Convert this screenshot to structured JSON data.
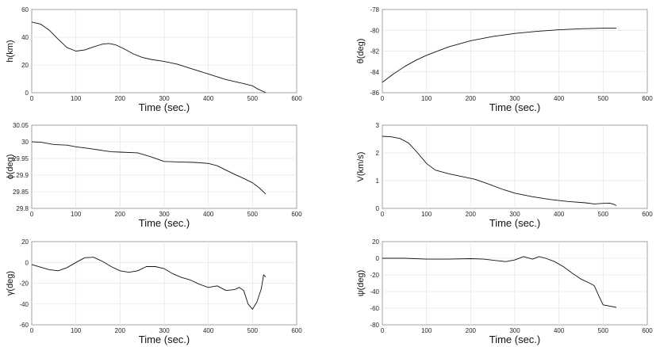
{
  "chart_data": [
    {
      "type": "line",
      "title": "",
      "xlabel": "Time (sec.)",
      "ylabel": "h(km)",
      "xlim": [
        0,
        600
      ],
      "ylim": [
        0,
        60
      ],
      "xticks": [
        0,
        100,
        200,
        300,
        400,
        500,
        600
      ],
      "yticks": [
        0,
        20,
        40,
        60
      ],
      "ytick_labels": [
        "0",
        "20",
        "40",
        "60"
      ],
      "grid": true,
      "series": [
        {
          "name": "h",
          "x": [
            0,
            20,
            40,
            60,
            80,
            100,
            120,
            140,
            160,
            175,
            190,
            210,
            230,
            250,
            270,
            300,
            330,
            360,
            400,
            440,
            480,
            500,
            510,
            530
          ],
          "values": [
            51,
            49.5,
            45,
            38.5,
            32.5,
            30,
            30.8,
            33,
            35,
            35.5,
            34.5,
            31.5,
            28,
            25.5,
            24,
            22.5,
            20.5,
            17.5,
            13.5,
            9.5,
            6.5,
            5,
            3,
            0
          ]
        }
      ]
    },
    {
      "type": "line",
      "title": "",
      "xlabel": "Time (sec.)",
      "ylabel": "θ(deg)",
      "xlim": [
        0,
        600
      ],
      "ylim": [
        -86,
        -78
      ],
      "xticks": [
        0,
        100,
        200,
        300,
        400,
        500,
        600
      ],
      "yticks": [
        -86,
        -84,
        -82,
        -80,
        -78
      ],
      "ytick_labels": [
        "-86",
        "-84",
        "-82",
        "-80",
        "-78"
      ],
      "grid": true,
      "series": [
        {
          "name": "theta",
          "x": [
            0,
            25,
            50,
            75,
            100,
            150,
            200,
            250,
            300,
            350,
            400,
            450,
            500,
            530
          ],
          "values": [
            -85,
            -84.2,
            -83.5,
            -82.9,
            -82.4,
            -81.6,
            -81,
            -80.6,
            -80.3,
            -80.1,
            -79.95,
            -79.85,
            -79.8,
            -79.8
          ]
        }
      ]
    },
    {
      "type": "line",
      "title": "",
      "xlabel": "Time (sec.)",
      "ylabel": "ϕ(deg)",
      "xlim": [
        0,
        600
      ],
      "ylim": [
        29.8,
        30.05
      ],
      "xticks": [
        0,
        100,
        200,
        300,
        400,
        500,
        600
      ],
      "yticks": [
        29.8,
        29.85,
        29.9,
        29.95,
        30,
        30.05
      ],
      "ytick_labels": [
        "29.8",
        "29.85",
        "29.9",
        "29.95",
        "30",
        "30.05"
      ],
      "grid": true,
      "series": [
        {
          "name": "phi",
          "x": [
            0,
            20,
            50,
            80,
            100,
            130,
            160,
            180,
            200,
            240,
            270,
            300,
            320,
            340,
            370,
            400,
            420,
            440,
            460,
            480,
            500,
            515,
            530
          ],
          "values": [
            30,
            29.999,
            29.992,
            29.99,
            29.985,
            29.98,
            29.974,
            29.97,
            29.969,
            29.967,
            29.955,
            29.941,
            29.94,
            29.939,
            29.938,
            29.935,
            29.928,
            29.915,
            29.902,
            29.89,
            29.877,
            29.862,
            29.843
          ]
        }
      ]
    },
    {
      "type": "line",
      "title": "",
      "xlabel": "Time (sec.)",
      "ylabel": "V(km/s)",
      "xlim": [
        0,
        600
      ],
      "ylim": [
        0,
        3
      ],
      "xticks": [
        0,
        100,
        200,
        300,
        400,
        500,
        600
      ],
      "yticks": [
        0,
        1,
        2,
        3
      ],
      "ytick_labels": [
        "0",
        "1",
        "2",
        "3"
      ],
      "grid": true,
      "series": [
        {
          "name": "V",
          "x": [
            0,
            20,
            40,
            60,
            80,
            100,
            120,
            150,
            180,
            210,
            240,
            270,
            300,
            340,
            380,
            420,
            460,
            480,
            500,
            515,
            525,
            530
          ],
          "values": [
            2.6,
            2.58,
            2.52,
            2.35,
            2.0,
            1.62,
            1.38,
            1.25,
            1.15,
            1.05,
            0.88,
            0.7,
            0.55,
            0.42,
            0.32,
            0.25,
            0.2,
            0.16,
            0.18,
            0.19,
            0.14,
            0.1
          ]
        }
      ]
    },
    {
      "type": "line",
      "title": "",
      "xlabel": "Time (sec.)",
      "ylabel": "γ(deg)",
      "xlim": [
        0,
        600
      ],
      "ylim": [
        -60,
        20
      ],
      "xticks": [
        0,
        100,
        200,
        300,
        400,
        500,
        600
      ],
      "yticks": [
        -60,
        -40,
        -20,
        0,
        20
      ],
      "ytick_labels": [
        "-60",
        "-40",
        "-20",
        "0",
        "20"
      ],
      "grid": true,
      "series": [
        {
          "name": "gamma",
          "x": [
            0,
            20,
            40,
            60,
            80,
            100,
            120,
            140,
            160,
            180,
            200,
            220,
            240,
            260,
            280,
            300,
            320,
            340,
            360,
            380,
            400,
            420,
            440,
            460,
            470,
            480,
            490,
            500,
            510,
            520,
            525,
            530
          ],
          "values": [
            -2,
            -4.5,
            -7,
            -8,
            -5,
            0,
            4.5,
            5,
            1,
            -4,
            -8,
            -9.5,
            -8,
            -4,
            -4,
            -6,
            -11,
            -14.5,
            -17,
            -21,
            -24,
            -22.5,
            -27,
            -26,
            -24,
            -27,
            -40,
            -45,
            -38,
            -25,
            -12,
            -14
          ]
        }
      ]
    },
    {
      "type": "line",
      "title": "",
      "xlabel": "Time (sec.)",
      "ylabel": "ψ(deg)",
      "xlim": [
        0,
        600
      ],
      "ylim": [
        -80,
        20
      ],
      "xticks": [
        0,
        100,
        200,
        300,
        400,
        500,
        600
      ],
      "yticks": [
        -80,
        -60,
        -40,
        -20,
        0,
        20
      ],
      "ytick_labels": [
        "-80",
        "-60",
        "-40",
        "-20",
        "0",
        "20"
      ],
      "grid": true,
      "series": [
        {
          "name": "psi",
          "x": [
            0,
            50,
            100,
            150,
            200,
            230,
            260,
            280,
            300,
            320,
            340,
            355,
            370,
            390,
            410,
            430,
            450,
            470,
            480,
            490,
            500,
            530
          ],
          "values": [
            0,
            0,
            -1,
            -1,
            -0.5,
            -1,
            -3,
            -4,
            -2,
            2,
            -1,
            2,
            0,
            -4,
            -10,
            -18,
            -25,
            -30,
            -33,
            -45,
            -56,
            -59
          ]
        }
      ]
    }
  ]
}
